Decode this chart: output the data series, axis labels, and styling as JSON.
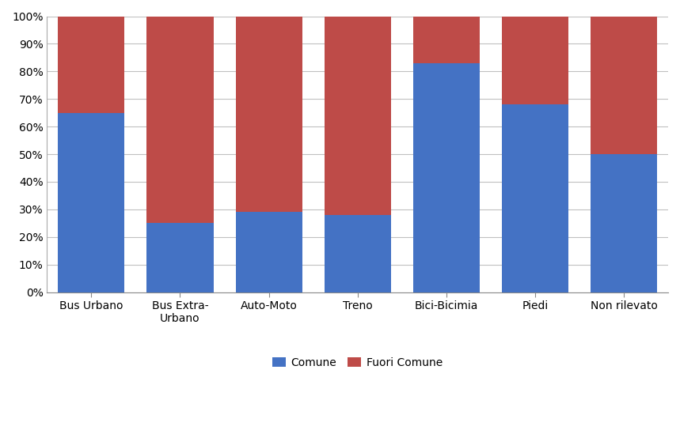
{
  "categories": [
    "Bus Urbano",
    "Bus Extra-\nUrbano",
    "Auto-Moto",
    "Treno",
    "Bici-Bicimia",
    "Piedi",
    "Non rilevato"
  ],
  "comune": [
    65,
    25,
    29,
    28,
    83,
    68,
    50
  ],
  "fuori_comune": [
    35,
    75,
    71,
    72,
    17,
    32,
    50
  ],
  "color_comune": "#4472C4",
  "color_fuori_comune": "#BE4B48",
  "ylabel_ticks": [
    "0%",
    "10%",
    "20%",
    "30%",
    "40%",
    "50%",
    "60%",
    "70%",
    "80%",
    "90%",
    "100%"
  ],
  "ytick_values": [
    0,
    10,
    20,
    30,
    40,
    50,
    60,
    70,
    80,
    90,
    100
  ],
  "legend_labels": [
    "Comune",
    "Fuori Comune"
  ],
  "background_color": "#FFFFFF",
  "bar_width": 0.75,
  "grid_color": "#C0C0C0",
  "plot_bg_color": "#FFFFFF",
  "figsize": [
    8.59,
    5.44
  ],
  "dpi": 100
}
